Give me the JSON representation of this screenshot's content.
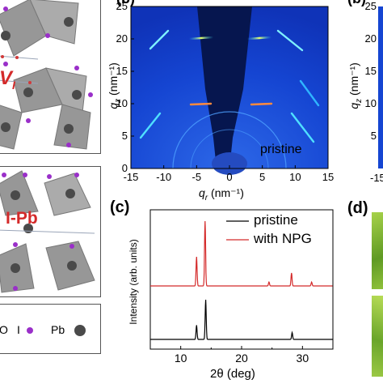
{
  "panel_labels": {
    "b": "(b)",
    "c": "(c)",
    "d": "(d)",
    "b2": "(b)"
  },
  "structure_top": {
    "label": "V",
    "label_sub": "I"
  },
  "structure_bottom": {
    "label": "I-Pb"
  },
  "legend_atoms": {
    "o": "O",
    "i": "I",
    "pb": "Pb"
  },
  "giwaxs": {
    "ylabel_q": "q",
    "ylabel_sub": "z",
    "ylabel_unit": "(nm⁻¹)",
    "xlabel_q": "q",
    "xlabel_sub": "r",
    "xlabel_unit": "(nm⁻¹)",
    "annotation": "pristine",
    "x_ticks": [
      "-15",
      "-10",
      "-5",
      "0",
      "5",
      "10",
      "15"
    ],
    "y_ticks": [
      "0",
      "5",
      "10",
      "15",
      "20",
      "25"
    ],
    "right_partial_ylabel_q": "q",
    "right_partial_ylabel_sub": "z",
    "right_partial_ylabel_unit": "(nm⁻¹)",
    "right_partial_y_ticks": [
      "25",
      "20",
      "15",
      "10",
      "5"
    ],
    "right_partial_x_tick": "-15"
  },
  "chart_data": {
    "type": "line",
    "xlabel": "2θ (deg)",
    "ylabel": "Intensity (arb. units)",
    "xlim": [
      5,
      35
    ],
    "x_ticks": [
      "10",
      "20",
      "30"
    ],
    "legend_position": "top-right",
    "series": [
      {
        "name": "pristine",
        "color": "#000000",
        "peaks": [
          {
            "x": 12.6,
            "h": 0.25
          },
          {
            "x": 14.1,
            "h": 0.7
          },
          {
            "x": 28.3,
            "h": 0.12
          }
        ]
      },
      {
        "name": "with NPG",
        "color": "#d42a2a",
        "peaks": [
          {
            "x": 12.6,
            "h": 0.45
          },
          {
            "x": 14.0,
            "h": 1.0
          },
          {
            "x": 24.5,
            "h": 0.06
          },
          {
            "x": 28.2,
            "h": 0.2
          },
          {
            "x": 31.5,
            "h": 0.06
          }
        ]
      }
    ]
  },
  "colors": {
    "octahedron": "#8c8c8c",
    "iodine": "#9a2fc9",
    "lead": "#4a4a4a",
    "giwaxs_bg": "#1238c8",
    "red_label": "#d42a2a"
  }
}
